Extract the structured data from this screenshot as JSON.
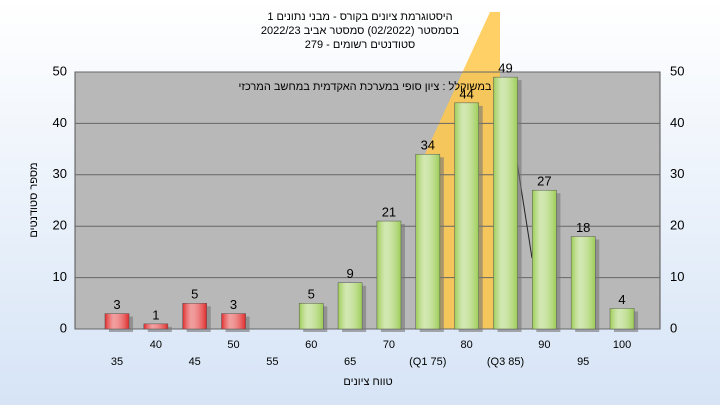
{
  "chart_data": {
    "type": "bar",
    "title": "היסטוגרמת ציונים בקורס - מבני נתונים 1",
    "subtitle": "בסמסטר  (02/2022)  סמסטר אביב 2022/23",
    "subtitle2": "סטודנטים רשומים - 279",
    "annotation": "במשוקלל : ציון סופי במערכת האקדמית במחשב המרכזי",
    "x_label": "טווח ציונים",
    "y_label": "מספר סטודנטים",
    "categories": [
      "35",
      "40",
      "45",
      "50",
      "55",
      "60",
      "65",
      "70",
      "(Q1 75)",
      "80",
      "(Q3 85)",
      "90",
      "95",
      "100"
    ],
    "values": [
      3,
      1,
      5,
      3,
      null,
      5,
      9,
      21,
      34,
      44,
      49,
      27,
      18,
      4
    ],
    "colors": [
      "#e02a2a",
      "#e02a2a",
      "#e02a2a",
      "#e02a2a",
      "#e02a2a",
      "#9ccc55",
      "#9ccc55",
      "#9ccc55",
      "#9ccc55",
      "#9ccc55",
      "#9ccc55",
      "#9ccc55",
      "#9ccc55",
      "#9ccc55"
    ],
    "ylim": [
      0,
      50
    ],
    "yticks": [
      0,
      10,
      20,
      30,
      40,
      50
    ],
    "grid": true
  }
}
